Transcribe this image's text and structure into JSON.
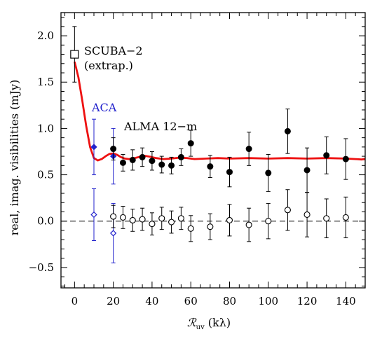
{
  "chart_data": {
    "type": "scatter",
    "xlabel": "ℛ",
    "xlabel_sub": "uv",
    "xlabel_unit": " (kλ)",
    "ylabel": "real, imag. visibilities (mJy)",
    "xlim": [
      -7,
      150
    ],
    "ylim": [
      -0.72,
      2.25
    ],
    "x_ticks": [
      0,
      20,
      40,
      60,
      80,
      100,
      120,
      140
    ],
    "y_ticks": [
      -0.5,
      0.0,
      0.5,
      1.0,
      1.5,
      2.0
    ],
    "x_tick_labels": [
      "0",
      "20",
      "40",
      "60",
      "80",
      "100",
      "120",
      "140"
    ],
    "y_tick_labels": [
      "−0.5",
      "0.0",
      "0.5",
      "1.0",
      "1.5",
      "2.0"
    ],
    "zero_line": 0,
    "annotations": [
      {
        "text": "SCUBA−2",
        "color": "#000000"
      },
      {
        "text": "(extrap.)",
        "color": "#000000"
      },
      {
        "text": "ACA",
        "color": "#2222cc"
      },
      {
        "text": "ALMA 12−m",
        "color": "#000000"
      }
    ],
    "series": [
      {
        "marker": "open-square",
        "color": "#000000",
        "points": [
          {
            "x": 0,
            "y": 1.8,
            "err": 0.3
          }
        ]
      },
      {
        "marker": "filled-diamond",
        "color": "#2222cc",
        "points": [
          {
            "x": 10,
            "y": 0.8,
            "err": 0.3
          },
          {
            "x": 20,
            "y": 0.7,
            "err": 0.3
          }
        ]
      },
      {
        "marker": "open-diamond",
        "color": "#2222cc",
        "points": [
          {
            "x": 10,
            "y": 0.07,
            "err": 0.28
          },
          {
            "x": 20,
            "y": -0.13,
            "err": 0.32
          }
        ]
      },
      {
        "marker": "filled-circle",
        "color": "#000000",
        "points": [
          {
            "x": 20,
            "y": 0.78,
            "err": 0.12
          },
          {
            "x": 25,
            "y": 0.63,
            "err": 0.09
          },
          {
            "x": 30,
            "y": 0.66,
            "err": 0.11
          },
          {
            "x": 35,
            "y": 0.69,
            "err": 0.1
          },
          {
            "x": 40,
            "y": 0.65,
            "err": 0.1
          },
          {
            "x": 45,
            "y": 0.61,
            "err": 0.09
          },
          {
            "x": 50,
            "y": 0.6,
            "err": 0.09
          },
          {
            "x": 55,
            "y": 0.69,
            "err": 0.09
          },
          {
            "x": 60,
            "y": 0.84,
            "err": 0.14
          },
          {
            "x": 70,
            "y": 0.59,
            "err": 0.12
          },
          {
            "x": 80,
            "y": 0.53,
            "err": 0.16
          },
          {
            "x": 90,
            "y": 0.78,
            "err": 0.18
          },
          {
            "x": 100,
            "y": 0.52,
            "err": 0.2
          },
          {
            "x": 110,
            "y": 0.97,
            "err": 0.24
          },
          {
            "x": 120,
            "y": 0.55,
            "err": 0.24
          },
          {
            "x": 130,
            "y": 0.71,
            "err": 0.2
          },
          {
            "x": 140,
            "y": 0.67,
            "err": 0.22
          }
        ]
      },
      {
        "marker": "open-circle",
        "color": "#000000",
        "points": [
          {
            "x": 20,
            "y": 0.05,
            "err": 0.12
          },
          {
            "x": 25,
            "y": 0.04,
            "err": 0.12
          },
          {
            "x": 30,
            "y": 0.01,
            "err": 0.12
          },
          {
            "x": 35,
            "y": 0.02,
            "err": 0.12
          },
          {
            "x": 40,
            "y": -0.03,
            "err": 0.12
          },
          {
            "x": 45,
            "y": 0.03,
            "err": 0.12
          },
          {
            "x": 50,
            "y": -0.01,
            "err": 0.12
          },
          {
            "x": 55,
            "y": 0.03,
            "err": 0.12
          },
          {
            "x": 60,
            "y": -0.08,
            "err": 0.14
          },
          {
            "x": 70,
            "y": -0.06,
            "err": 0.14
          },
          {
            "x": 80,
            "y": 0.01,
            "err": 0.17
          },
          {
            "x": 90,
            "y": -0.04,
            "err": 0.18
          },
          {
            "x": 100,
            "y": 0.0,
            "err": 0.19
          },
          {
            "x": 110,
            "y": 0.12,
            "err": 0.22
          },
          {
            "x": 120,
            "y": 0.07,
            "err": 0.24
          },
          {
            "x": 130,
            "y": 0.03,
            "err": 0.21
          },
          {
            "x": 140,
            "y": 0.04,
            "err": 0.22
          }
        ]
      }
    ],
    "model_curve": {
      "color": "#ee1111",
      "points": [
        [
          0,
          1.72
        ],
        [
          2,
          1.55
        ],
        [
          4,
          1.3
        ],
        [
          6,
          1.03
        ],
        [
          8,
          0.8
        ],
        [
          10,
          0.68
        ],
        [
          12,
          0.655
        ],
        [
          14,
          0.67
        ],
        [
          16,
          0.7
        ],
        [
          18,
          0.725
        ],
        [
          20,
          0.73
        ],
        [
          22,
          0.715
        ],
        [
          24,
          0.69
        ],
        [
          26,
          0.675
        ],
        [
          28,
          0.67
        ],
        [
          30,
          0.675
        ],
        [
          33,
          0.69
        ],
        [
          36,
          0.705
        ],
        [
          39,
          0.695
        ],
        [
          42,
          0.68
        ],
        [
          46,
          0.67
        ],
        [
          50,
          0.675
        ],
        [
          54,
          0.685
        ],
        [
          58,
          0.68
        ],
        [
          62,
          0.67
        ],
        [
          68,
          0.675
        ],
        [
          74,
          0.68
        ],
        [
          80,
          0.675
        ],
        [
          90,
          0.68
        ],
        [
          100,
          0.675
        ],
        [
          110,
          0.68
        ],
        [
          120,
          0.675
        ],
        [
          130,
          0.68
        ],
        [
          140,
          0.675
        ],
        [
          145,
          0.67
        ],
        [
          148,
          0.665
        ],
        [
          150,
          0.67
        ]
      ]
    }
  }
}
